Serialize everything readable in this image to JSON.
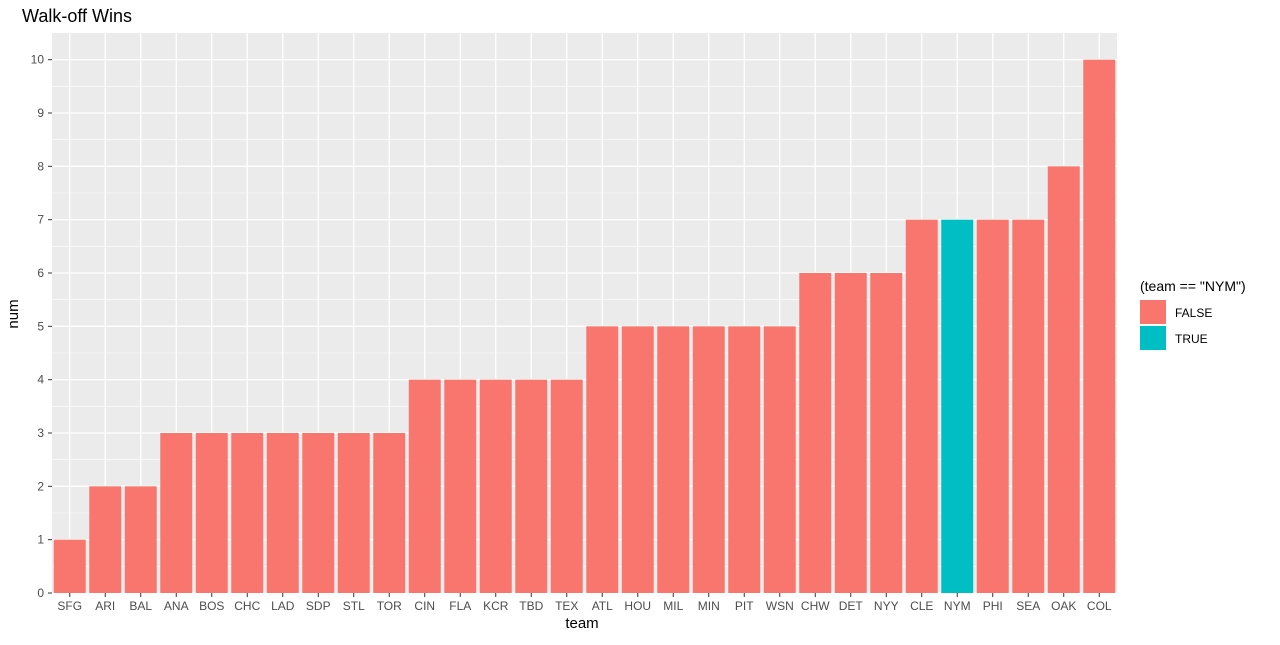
{
  "chart_data": {
    "type": "bar",
    "title": "Walk-off Wins",
    "xlabel": "team",
    "ylabel": "num",
    "ylim": [
      0,
      10.5
    ],
    "yticks": [
      0,
      1,
      2,
      3,
      4,
      5,
      6,
      7,
      8,
      9,
      10
    ],
    "grid": true,
    "categories": [
      "SFG",
      "ARI",
      "BAL",
      "ANA",
      "BOS",
      "CHC",
      "LAD",
      "SDP",
      "STL",
      "TOR",
      "CIN",
      "FLA",
      "KCR",
      "TBD",
      "TEX",
      "ATL",
      "HOU",
      "MIL",
      "MIN",
      "PIT",
      "WSN",
      "CHW",
      "DET",
      "NYY",
      "CLE",
      "NYM",
      "PHI",
      "SEA",
      "OAK",
      "COL"
    ],
    "values": [
      1,
      2,
      2,
      3,
      3,
      3,
      3,
      3,
      3,
      3,
      4,
      4,
      4,
      4,
      4,
      5,
      5,
      5,
      5,
      5,
      5,
      6,
      6,
      6,
      7,
      7,
      7,
      7,
      8,
      10
    ],
    "highlight": [
      false,
      false,
      false,
      false,
      false,
      false,
      false,
      false,
      false,
      false,
      false,
      false,
      false,
      false,
      false,
      false,
      false,
      false,
      false,
      false,
      false,
      false,
      false,
      false,
      false,
      true,
      false,
      false,
      false,
      false
    ],
    "legend": {
      "title": "(team == \"NYM\")",
      "position": "right",
      "entries": [
        {
          "label": "FALSE",
          "color": "#F8766D"
        },
        {
          "label": "TRUE",
          "color": "#00BFC4"
        }
      ]
    }
  }
}
